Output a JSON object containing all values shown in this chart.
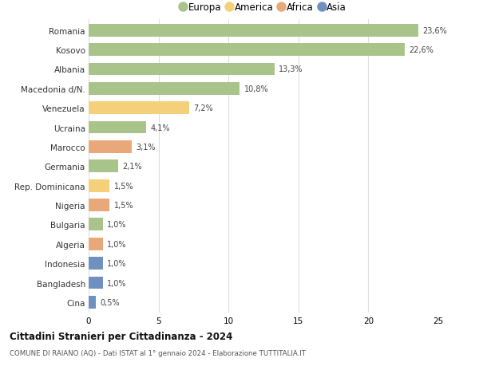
{
  "countries": [
    "Romania",
    "Kosovo",
    "Albania",
    "Macedonia d/N.",
    "Venezuela",
    "Ucraina",
    "Marocco",
    "Germania",
    "Rep. Dominicana",
    "Nigeria",
    "Bulgaria",
    "Algeria",
    "Indonesia",
    "Bangladesh",
    "Cina"
  ],
  "values": [
    23.6,
    22.6,
    13.3,
    10.8,
    7.2,
    4.1,
    3.1,
    2.1,
    1.5,
    1.5,
    1.0,
    1.0,
    1.0,
    1.0,
    0.5
  ],
  "continents": [
    "Europa",
    "Europa",
    "Europa",
    "Europa",
    "America",
    "Europa",
    "Africa",
    "Europa",
    "America",
    "Africa",
    "Europa",
    "Africa",
    "Asia",
    "Asia",
    "Asia"
  ],
  "labels": [
    "23,6%",
    "22,6%",
    "13,3%",
    "10,8%",
    "7,2%",
    "4,1%",
    "3,1%",
    "2,1%",
    "1,5%",
    "1,5%",
    "1,0%",
    "1,0%",
    "1,0%",
    "1,0%",
    "0,5%"
  ],
  "colors": {
    "Europa": "#a8c48a",
    "America": "#f5d07a",
    "Africa": "#e8a87a",
    "Asia": "#7090c0"
  },
  "legend_order": [
    "Europa",
    "America",
    "Africa",
    "Asia"
  ],
  "xlim": [
    0,
    25
  ],
  "xticks": [
    0,
    5,
    10,
    15,
    20,
    25
  ],
  "title": "Cittadini Stranieri per Cittadinanza - 2024",
  "subtitle": "COMUNE DI RAIANO (AQ) - Dati ISTAT al 1° gennaio 2024 - Elaborazione TUTTITALIA.IT",
  "bar_height": 0.65,
  "background_color": "#ffffff",
  "grid_color": "#dddddd"
}
